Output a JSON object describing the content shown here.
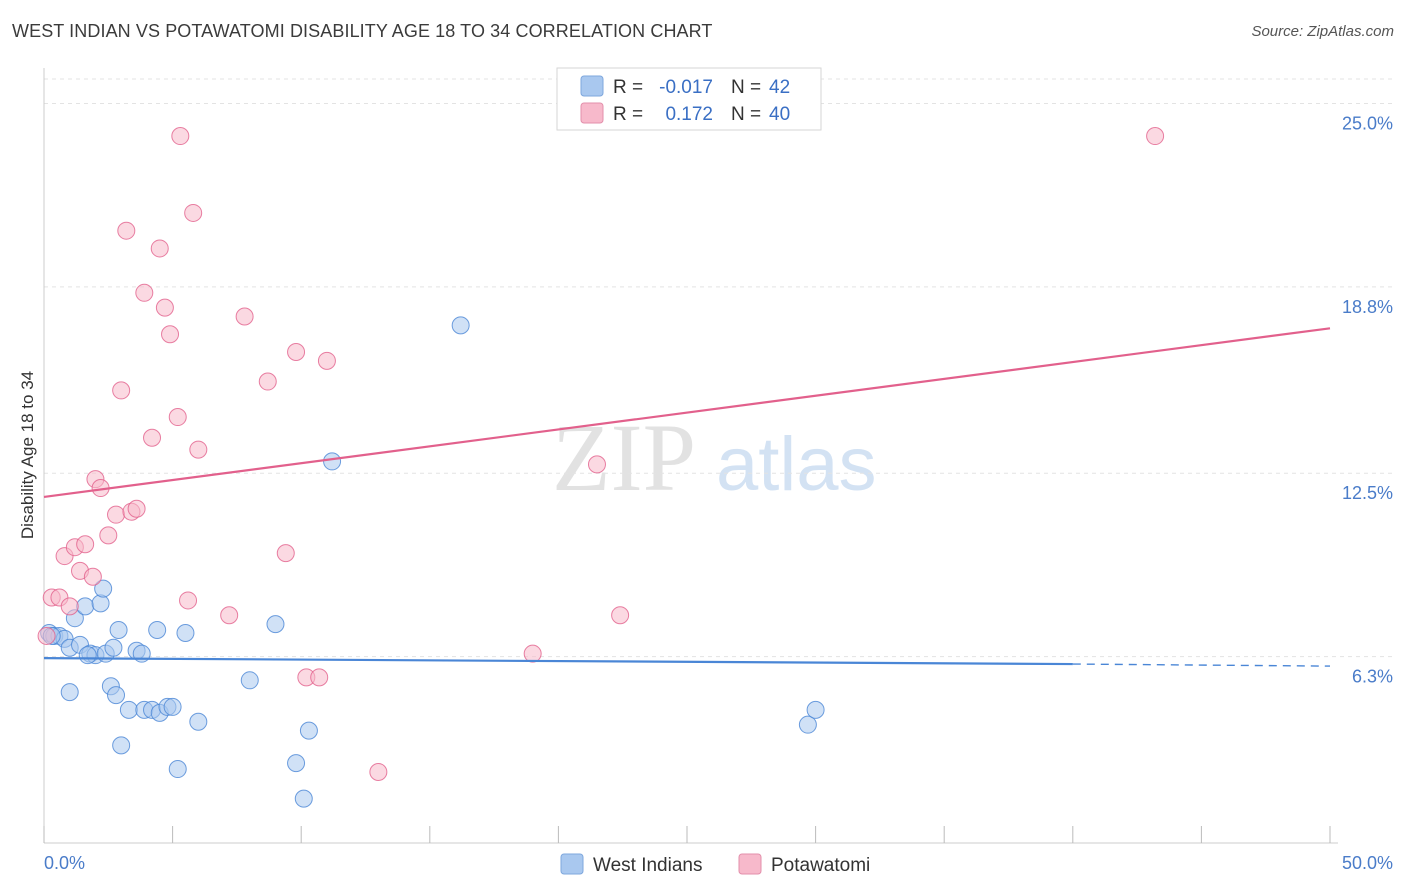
{
  "header": {
    "title": "WEST INDIAN VS POTAWATOMI DISABILITY AGE 18 TO 34 CORRELATION CHART",
    "source": "Source: ZipAtlas.com"
  },
  "watermark": {
    "zip": "ZIP",
    "atlas": "atlas"
  },
  "legend": {
    "r_label": "R =",
    "n_label": "N =",
    "rows": [
      {
        "r": "-0.017",
        "n": "42",
        "color": "#a9c8ef"
      },
      {
        "r": "0.172",
        "n": "40",
        "color": "#f7b9cb"
      }
    ]
  },
  "bottom_legend": [
    {
      "label": "West Indians",
      "color": "#a9c8ef"
    },
    {
      "label": "Potawatomi",
      "color": "#f7b9cb"
    }
  ],
  "chart_data": {
    "type": "scatter",
    "title": "WEST INDIAN VS POTAWATOMI DISABILITY AGE 18 TO 34 CORRELATION CHART",
    "xlabel": "",
    "ylabel": "Disability Age 18 to 34",
    "xlim": [
      0,
      50
    ],
    "ylim": [
      0,
      26.2
    ],
    "x_tick_labels": [
      "0.0%",
      "50.0%"
    ],
    "y_ticks": [
      6.3,
      12.5,
      18.8,
      25.0
    ],
    "y_tick_labels": [
      "6.3%",
      "12.5%",
      "18.8%",
      "25.0%"
    ],
    "grid": true,
    "series": [
      {
        "name": "West Indians",
        "color": "#4a86d6",
        "fill": "#a9c8ef",
        "trend": {
          "x0": 0,
          "y0": 6.25,
          "x1": 40,
          "y1": 6.05,
          "dash_to": 50,
          "dash_y": 5.98
        },
        "points": [
          [
            0.2,
            7.1
          ],
          [
            0.4,
            7.0
          ],
          [
            0.6,
            7.0
          ],
          [
            0.8,
            6.9
          ],
          [
            1.0,
            6.6
          ],
          [
            1.2,
            7.6
          ],
          [
            1.4,
            6.7
          ],
          [
            1.6,
            8.0
          ],
          [
            1.8,
            6.4
          ],
          [
            2.0,
            6.35
          ],
          [
            2.2,
            8.1
          ],
          [
            2.3,
            8.6
          ],
          [
            2.4,
            6.4
          ],
          [
            2.6,
            5.3
          ],
          [
            2.7,
            6.6
          ],
          [
            2.8,
            5.0
          ],
          [
            2.9,
            7.2
          ],
          [
            3.0,
            3.3
          ],
          [
            3.3,
            4.5
          ],
          [
            3.6,
            6.5
          ],
          [
            3.8,
            6.4
          ],
          [
            3.9,
            4.5
          ],
          [
            4.2,
            4.5
          ],
          [
            4.4,
            7.2
          ],
          [
            4.5,
            4.4
          ],
          [
            4.8,
            4.6
          ],
          [
            5.0,
            4.6
          ],
          [
            5.2,
            2.5
          ],
          [
            5.5,
            7.1
          ],
          [
            6.0,
            4.1
          ],
          [
            8.0,
            5.5
          ],
          [
            9.0,
            7.4
          ],
          [
            9.8,
            2.7
          ],
          [
            10.1,
            1.5
          ],
          [
            10.3,
            3.8
          ],
          [
            11.2,
            12.9
          ],
          [
            16.2,
            17.5
          ],
          [
            29.7,
            4.0
          ],
          [
            30.0,
            4.5
          ],
          [
            1.0,
            5.1
          ],
          [
            0.3,
            7.0
          ],
          [
            1.7,
            6.35
          ]
        ]
      },
      {
        "name": "Potawatomi",
        "color": "#e2608c",
        "fill": "#f7b9cb",
        "trend": {
          "x0": 0,
          "y0": 11.7,
          "x1": 50,
          "y1": 17.4
        },
        "points": [
          [
            0.3,
            8.3
          ],
          [
            0.6,
            8.3
          ],
          [
            0.8,
            9.7
          ],
          [
            1.0,
            8.0
          ],
          [
            1.2,
            10.0
          ],
          [
            1.4,
            9.2
          ],
          [
            1.6,
            10.1
          ],
          [
            1.9,
            9.0
          ],
          [
            2.0,
            12.3
          ],
          [
            2.2,
            12.0
          ],
          [
            2.5,
            10.4
          ],
          [
            2.8,
            11.1
          ],
          [
            3.0,
            15.3
          ],
          [
            3.2,
            20.7
          ],
          [
            3.4,
            11.2
          ],
          [
            3.6,
            11.3
          ],
          [
            3.9,
            18.6
          ],
          [
            4.2,
            13.7
          ],
          [
            4.5,
            20.1
          ],
          [
            4.7,
            18.1
          ],
          [
            4.9,
            17.2
          ],
          [
            5.2,
            14.4
          ],
          [
            5.3,
            23.9
          ],
          [
            5.6,
            8.2
          ],
          [
            5.8,
            21.3
          ],
          [
            6.0,
            13.3
          ],
          [
            7.2,
            7.7
          ],
          [
            7.8,
            17.8
          ],
          [
            8.7,
            15.6
          ],
          [
            9.4,
            9.8
          ],
          [
            9.8,
            16.6
          ],
          [
            10.2,
            5.6
          ],
          [
            10.7,
            5.6
          ],
          [
            11.0,
            16.3
          ],
          [
            13.0,
            2.4
          ],
          [
            19.0,
            6.4
          ],
          [
            21.5,
            12.8
          ],
          [
            22.4,
            7.7
          ],
          [
            43.2,
            23.9
          ],
          [
            0.1,
            7.0
          ]
        ]
      }
    ]
  }
}
